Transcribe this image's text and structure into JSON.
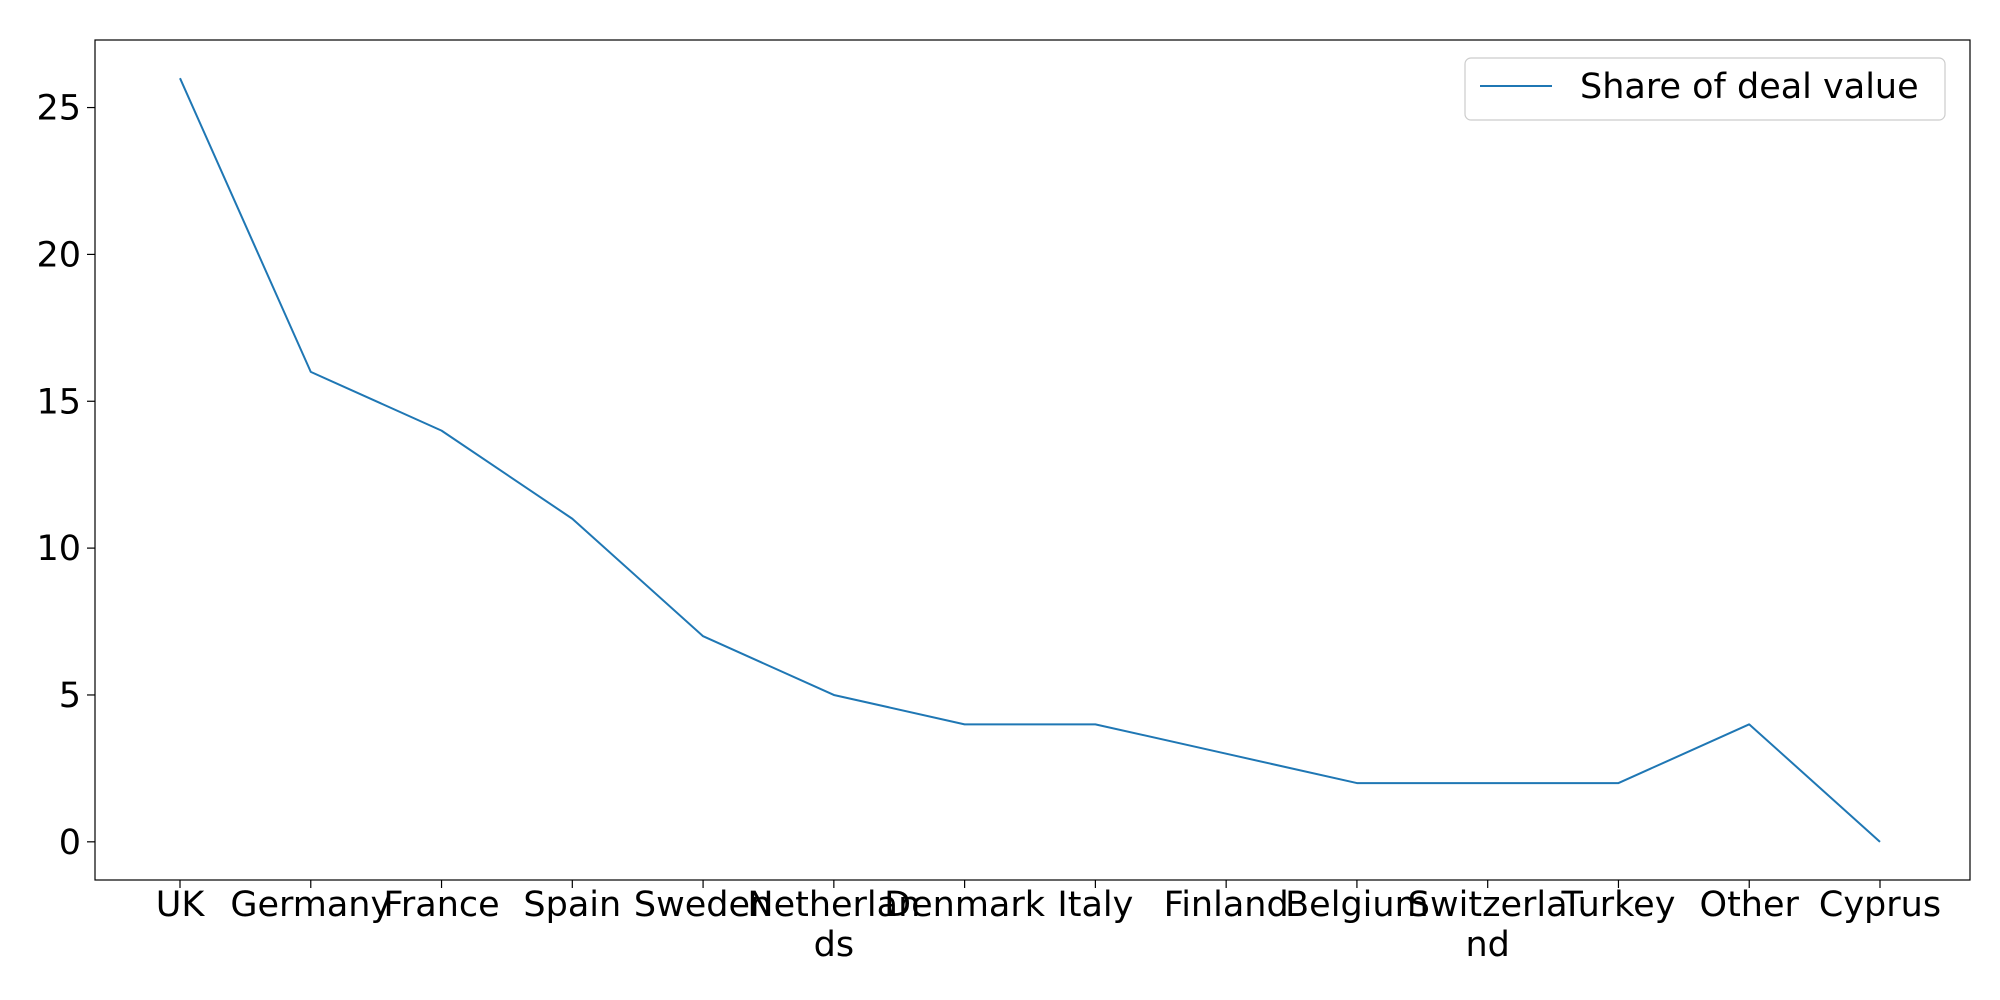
{
  "chart_data": {
    "type": "line",
    "categories": [
      "UK",
      "Germany",
      "France",
      "Spain",
      "Sweden",
      "Netherlands",
      "Denmark",
      "Italy",
      "Finland",
      "Belgium",
      "Switzerland",
      "Turkey",
      "Other",
      "Cyprus"
    ],
    "series": [
      {
        "name": "Share of deal value",
        "values": [
          26,
          16,
          14,
          11,
          7,
          5,
          4,
          4,
          3,
          2,
          2,
          2,
          4,
          0
        ],
        "color": "#1f77b4"
      }
    ],
    "yticks": [
      0,
      5,
      10,
      15,
      20,
      25
    ],
    "ylim": [
      -1.3,
      27.3
    ],
    "grid": false,
    "legend_position": "top-right"
  }
}
